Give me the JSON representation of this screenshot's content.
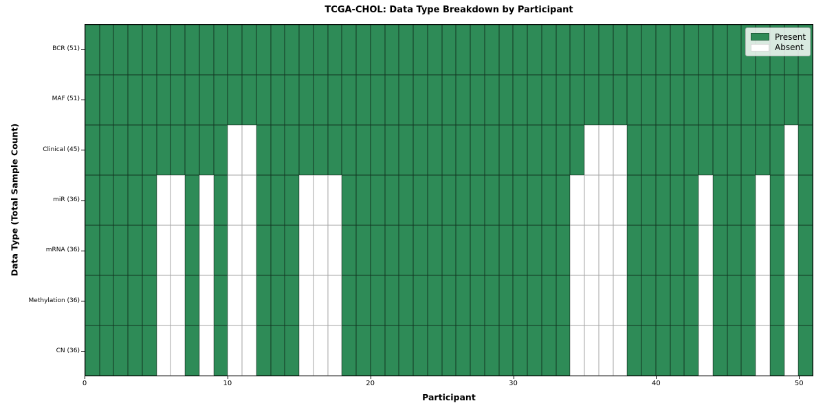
{
  "chart_data": {
    "type": "heatmap",
    "title": "TCGA-CHOL: Data Type Breakdown by Participant",
    "xlabel": "Participant",
    "ylabel": "Data Type (Total Sample Count)",
    "n_participants": 51,
    "x_range": [
      0,
      51
    ],
    "x_ticks": [
      0,
      10,
      20,
      30,
      40,
      50
    ],
    "grid": true,
    "legend_position": "upper right",
    "legend": [
      {
        "label": "Present",
        "color": "#2e8b57"
      },
      {
        "label": "Absent",
        "color": "#ffffff"
      }
    ],
    "colors": {
      "present": "#2e8b57",
      "absent": "#ffffff",
      "axis": "#000000"
    },
    "rows": [
      {
        "label": "BCR (51)",
        "name": "BCR",
        "present_total": 51,
        "absent_participants": []
      },
      {
        "label": "MAF (51)",
        "name": "MAF",
        "present_total": 51,
        "absent_participants": []
      },
      {
        "label": "Clinical (45)",
        "name": "Clinical",
        "present_total": 45,
        "absent_participants": [
          10,
          11,
          35,
          36,
          37,
          49
        ]
      },
      {
        "label": "miR (36)",
        "name": "miR",
        "present_total": 36,
        "absent_participants": [
          5,
          6,
          8,
          10,
          11,
          15,
          16,
          17,
          34,
          35,
          36,
          37,
          43,
          47,
          49
        ]
      },
      {
        "label": "mRNA (36)",
        "name": "mRNA",
        "present_total": 36,
        "absent_participants": [
          5,
          6,
          8,
          10,
          11,
          15,
          16,
          17,
          34,
          35,
          36,
          37,
          43,
          47,
          49
        ]
      },
      {
        "label": "Methylation (36)",
        "name": "Methylation",
        "present_total": 36,
        "absent_participants": [
          5,
          6,
          8,
          10,
          11,
          15,
          16,
          17,
          34,
          35,
          36,
          37,
          43,
          47,
          49
        ]
      },
      {
        "label": "CN (36)",
        "name": "CN",
        "present_total": 36,
        "absent_participants": [
          5,
          6,
          8,
          10,
          11,
          15,
          16,
          17,
          34,
          35,
          36,
          37,
          43,
          47,
          49
        ]
      }
    ]
  }
}
